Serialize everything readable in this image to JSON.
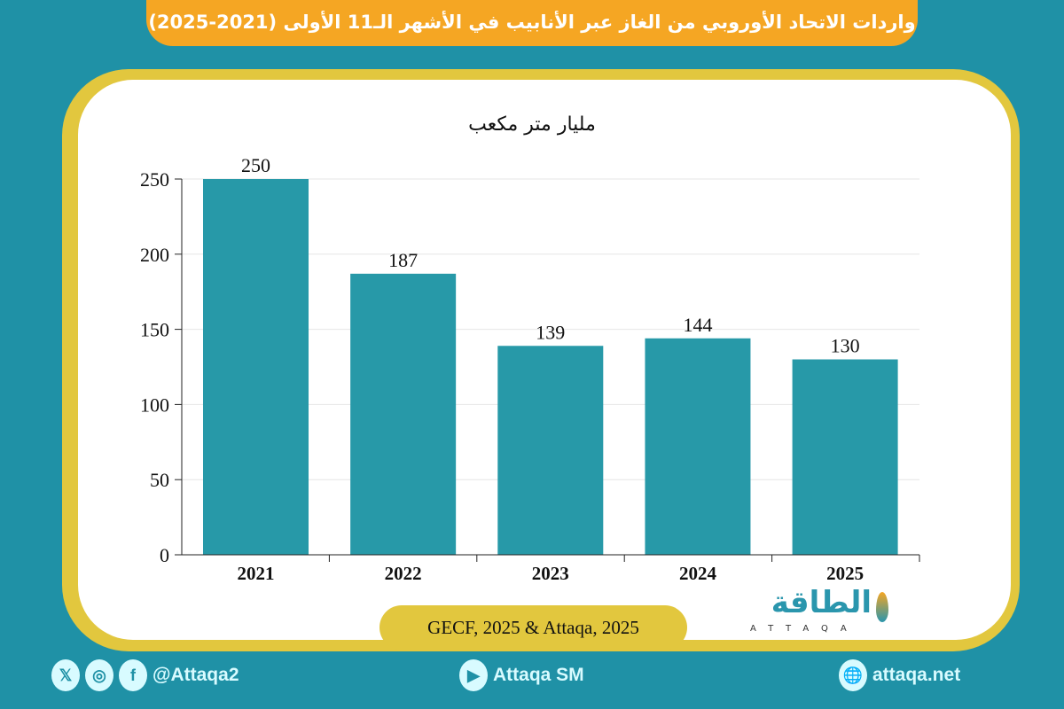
{
  "title": "واردات الاتحاد الأوروبي من الغاز عبر الأنابيب في الأشهر الـ11 الأولى (2021-2025)",
  "chart_data": {
    "type": "bar",
    "title": "",
    "ylabel": "مليار متر مكعب",
    "xlabel": "",
    "categories": [
      "2021",
      "2022",
      "2023",
      "2024",
      "2025"
    ],
    "values": [
      250,
      187,
      139,
      144,
      130
    ],
    "ylim": [
      0,
      250
    ],
    "yticks": [
      0,
      50,
      100,
      150,
      200,
      250
    ],
    "grid": true,
    "bar_color": "#2799a8"
  },
  "source": "GECF, 2025 & Attaqa, 2025",
  "logo": {
    "arabic": "الطاقة",
    "latin": "ATTAQA"
  },
  "footer": {
    "social_handle": "@Attaqa2",
    "youtube": "Attaqa SM",
    "website": "attaqa.net"
  },
  "colors": {
    "background": "#1f91a6",
    "title_bg": "#f5a623",
    "frame": "#e2c73e"
  }
}
